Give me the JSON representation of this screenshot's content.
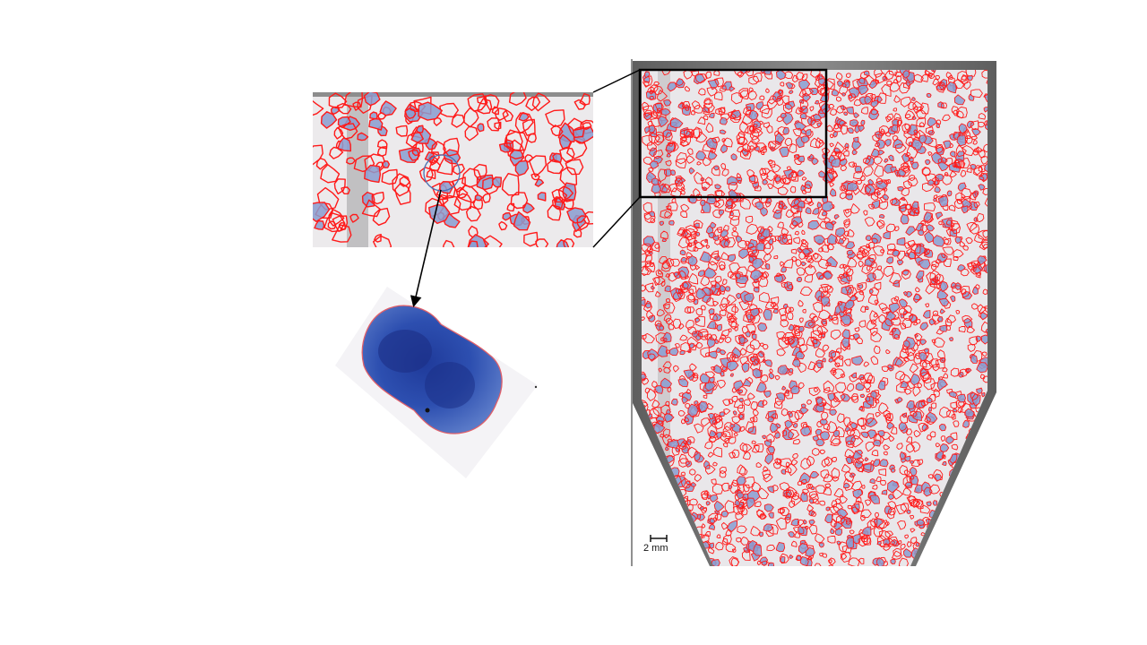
{
  "figure": {
    "scale_bar": {
      "label": "2 mm"
    },
    "panels": {
      "well": {
        "content": "full-well-segmentation"
      },
      "zoom": {
        "content": "zoomed-region-segmentation"
      },
      "colony": {
        "content": "single-colony-closeup"
      }
    },
    "colors": {
      "outline": "#ff1a1a",
      "colony_fill": "#8a9cd0",
      "background": "#e9e7ea",
      "well_frame": "#6b6b6b",
      "colony_blue": "#2d4fb0",
      "annotation": "#000000",
      "circle_marker": "#4a6fb0"
    }
  }
}
